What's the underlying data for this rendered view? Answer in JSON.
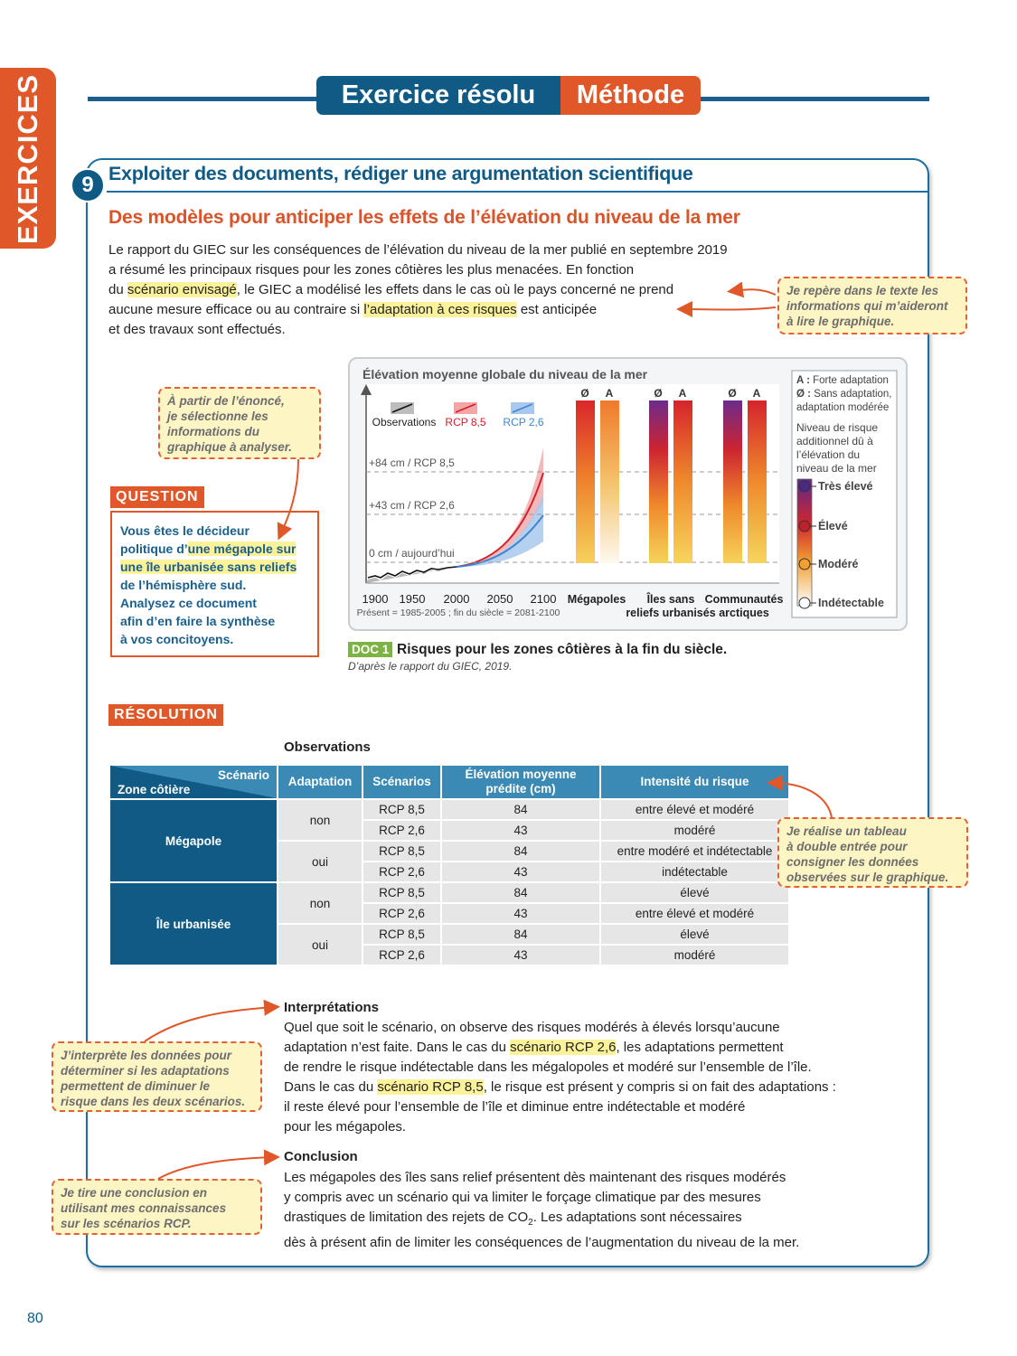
{
  "sidebar": "EXERCICES",
  "header": {
    "title": "Exercice résolu",
    "tag": "Méthode"
  },
  "exercise": {
    "number": "9",
    "title": "Exploiter des documents, rédiger une argumentation scientifique",
    "subtitle": "Des modèles pour anticiper les effets de l’élévation du niveau de la mer",
    "intro": [
      [
        {
          "text": "Le rapport du GIEC sur les conséquences de l’élévation du niveau de la mer publié en septembre 2019"
        }
      ],
      [
        {
          "text": "a résumé les principaux risques pour les zones côtières les plus menacées. En fonction"
        }
      ],
      [
        {
          "text": "du "
        },
        {
          "text": "scénario envisagé",
          "highlight": true
        },
        {
          "text": ", le GIEC a modélisé les effets dans le cas où le pays concerné ne prend"
        }
      ],
      [
        {
          "text": "aucune mesure efficace ou au contraire si "
        },
        {
          "text": "l’adaptation à ces risques",
          "highlight": true
        },
        {
          "text": " est anticipée"
        }
      ],
      [
        {
          "text": "et des travaux sont effectués."
        }
      ]
    ]
  },
  "question": {
    "label": "QUESTION",
    "lines": [
      [
        {
          "text": "Vous êtes le décideur"
        }
      ],
      [
        {
          "text": "politique d’"
        },
        {
          "text": "une mégapole sur",
          "highlight": true
        }
      ],
      [
        {
          "text": "une île urbanisée sans reliefs",
          "highlight": true
        }
      ],
      [
        {
          "text": "de l’hémisphère sud."
        }
      ],
      [
        {
          "text": "Analysez ce document"
        }
      ],
      [
        {
          "text": "afin d’en faire la synthèse"
        }
      ],
      [
        {
          "text": "à vos concitoyens."
        }
      ]
    ]
  },
  "doc1": {
    "title": "Élévation moyenne globale du niveau de la mer",
    "legend": [
      "Observations",
      "RCP 8,5",
      "RCP 2,6"
    ],
    "levels": [
      "+84 cm / RCP 8,5",
      "+43 cm / RCP 2,6",
      "0 cm / aujourd’hui"
    ],
    "years": [
      1900,
      1950,
      2000,
      2050,
      2100
    ],
    "period": "Présent = 1985-2005 ; fin du siècle = 2081-2100",
    "columns": [
      {
        "label": [
          "Mégapoles"
        ],
        "bars": [
          "Ø",
          "A"
        ]
      },
      {
        "label": [
          "Îles sans",
          "reliefs urbanisés"
        ],
        "bars": [
          "Ø",
          "A"
        ]
      },
      {
        "label": [
          "Communautés",
          "arctiques"
        ],
        "bars": [
          "Ø",
          "A"
        ]
      }
    ],
    "key": [
      {
        "code": "A :",
        "text": "Forte adaptation"
      },
      {
        "code": "Ø :",
        "text": "Sans adaptation,"
      },
      {
        "text": "adaptation modérée"
      }
    ],
    "scale_title": [
      "Niveau de risque",
      "additionnel dû à",
      "l’élévation du",
      "niveau de la mer"
    ],
    "scale": [
      "Très élevé",
      "Élevé",
      "Modéré",
      "Indétectable"
    ],
    "label": "DOC 1",
    "caption": "Risques pour les zones côtières à la fin du siècle.",
    "source": "D’après le rapport du GIEC, 2019."
  },
  "resolution": {
    "label": "RÉSOLUTION",
    "table": {
      "caption": "Observations",
      "corner": {
        "top": "Scénario",
        "bottom": "Zone côtière"
      },
      "headers": [
        "Adaptation",
        "Scénarios",
        "Élévation moyenne prédite (cm)",
        "Intensité du risque"
      ],
      "zones": [
        {
          "name": "Mégapole",
          "groups": [
            {
              "adaptation": "non",
              "rows": [
                {
                  "scenario": "RCP 8,5",
                  "elevation": 84,
                  "risk": "entre élevé et modéré"
                },
                {
                  "scenario": "RCP 2,6",
                  "elevation": 43,
                  "risk": "modéré"
                }
              ]
            },
            {
              "adaptation": "oui",
              "rows": [
                {
                  "scenario": "RCP 8,5",
                  "elevation": 84,
                  "risk": "entre modéré et indétectable"
                },
                {
                  "scenario": "RCP 2,6",
                  "elevation": 43,
                  "risk": "indétectable"
                }
              ]
            }
          ]
        },
        {
          "name": "Île urbanisée",
          "groups": [
            {
              "adaptation": "non",
              "rows": [
                {
                  "scenario": "RCP 8,5",
                  "elevation": 84,
                  "risk": "élevé"
                },
                {
                  "scenario": "RCP 2,6",
                  "elevation": 43,
                  "risk": "entre élevé et modéré"
                }
              ]
            },
            {
              "adaptation": "oui",
              "rows": [
                {
                  "scenario": "RCP 8,5",
                  "elevation": 84,
                  "risk": "élevé"
                },
                {
                  "scenario": "RCP 2,6",
                  "elevation": 43,
                  "risk": "modéré"
                }
              ]
            }
          ]
        }
      ]
    },
    "interpretation": {
      "title": "Interprétations",
      "lines": [
        [
          {
            "text": "Quel que soit le scénario, on observe des risques modérés à élevés lorsqu’aucune"
          }
        ],
        [
          {
            "text": "adaptation n’est faite. Dans le cas du "
          },
          {
            "text": "scénario RCP 2,6",
            "highlight": true
          },
          {
            "text": ", les adaptations permettent"
          }
        ],
        [
          {
            "text": "de rendre le risque indétectable dans les mégalopoles et modéré sur l’ensemble de l’île."
          }
        ],
        [
          {
            "text": "Dans le cas du "
          },
          {
            "text": "scénario RCP 8,5",
            "highlight": true
          },
          {
            "text": ", le risque est présent y compris si on fait des adaptations :"
          }
        ],
        [
          {
            "text": "il reste élevé pour l’ensemble de l’île et diminue entre indétectable et modéré"
          }
        ],
        [
          {
            "text": "pour les mégapoles."
          }
        ]
      ]
    },
    "conclusion": {
      "title": "Conclusion",
      "lines": [
        [
          {
            "text": "Les mégapoles des îles sans relief présentent dès maintenant des risques modérés"
          }
        ],
        [
          {
            "text": "y compris avec un scénario qui va limiter le forçage climatique par des mesures"
          }
        ],
        [
          {
            "text": "drastiques de limitation des rejets de CO"
          },
          {
            "text": "2",
            "sub": true
          },
          {
            "text": ". Les adaptations sont nécessaires"
          }
        ],
        [
          {
            "text": "dès à présent afin de limiter les conséquences de l’augmentation du niveau de la mer."
          }
        ]
      ]
    }
  },
  "notes": [
    [
      "Je repère dans le texte les",
      "informations qui m’aideront",
      "à lire le graphique."
    ],
    [
      "À partir de l’énoncé,",
      "je sélectionne les",
      "informations du",
      "graphique à analyser."
    ],
    [
      "Je réalise un tableau",
      "à double entrée pour",
      "consigner les données",
      "observées sur le graphique."
    ],
    [
      "J’interprète les données pour",
      "déterminer si les adaptations",
      "permettent de diminuer le",
      "risque dans les deux scénarios."
    ],
    [
      "Je tire une conclusion en",
      "utilisant mes connaissances",
      "sur les scénarios RCP."
    ]
  ],
  "page_number": "80"
}
